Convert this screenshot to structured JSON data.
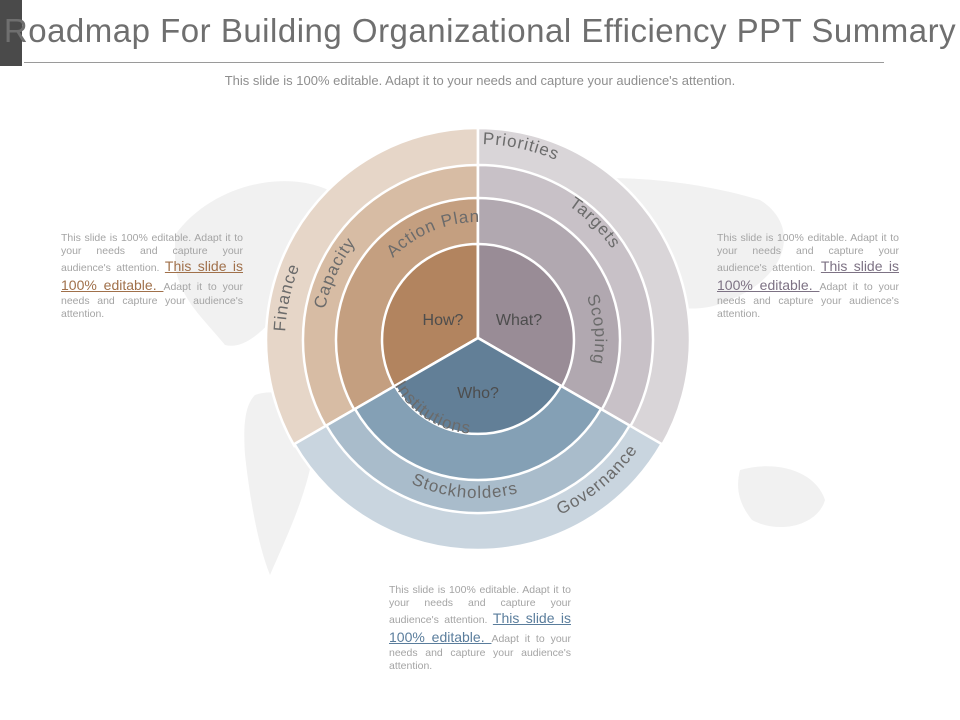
{
  "title": "Roadmap For Building Organizational Efficiency PPT Summary",
  "subtitle": "This slide is 100% editable. Adapt it to your needs and capture your audience's attention.",
  "diagram": {
    "core": {
      "how": "How?",
      "what": "What?",
      "who": "Who?"
    },
    "how_rings": {
      "inner": "Action Plan",
      "middle": "Capacity",
      "outer": "Finance"
    },
    "what_rings": {
      "inner": "Scoping",
      "middle": "Targets",
      "outer": "Priorities"
    },
    "who_rings": {
      "inner": "Institutions",
      "middle": "Stockholders",
      "outer": "Governance"
    },
    "colors": {
      "how": [
        "#b2845f",
        "#c49f80",
        "#d7bca4",
        "#e6d6c8"
      ],
      "what": [
        "#998c96",
        "#b1a8b0",
        "#c8c1c7",
        "#d9d5d8"
      ],
      "who": [
        "#627f97",
        "#84a0b5",
        "#a9bccb",
        "#c9d5df"
      ]
    }
  },
  "notes": {
    "left": {
      "pre": "This slide is 100% editable. Adapt it to your needs and capture your audience's attention. ",
      "link": "This slide is 100% editable. ",
      "post": "Adapt it to your needs and capture your audience's attention."
    },
    "right": {
      "pre": "This slide is 100% editable. Adapt it to your needs and capture your audience's attention. ",
      "link": "This slide is 100% editable. ",
      "post": "Adapt it to your needs and capture your audience's attention."
    },
    "bottom": {
      "pre": "This slide is 100% editable. Adapt it to your needs and capture your audience's attention. ",
      "link": "This slide is 100% editable. ",
      "post": "Adapt it to your needs and capture your audience's attention."
    }
  }
}
